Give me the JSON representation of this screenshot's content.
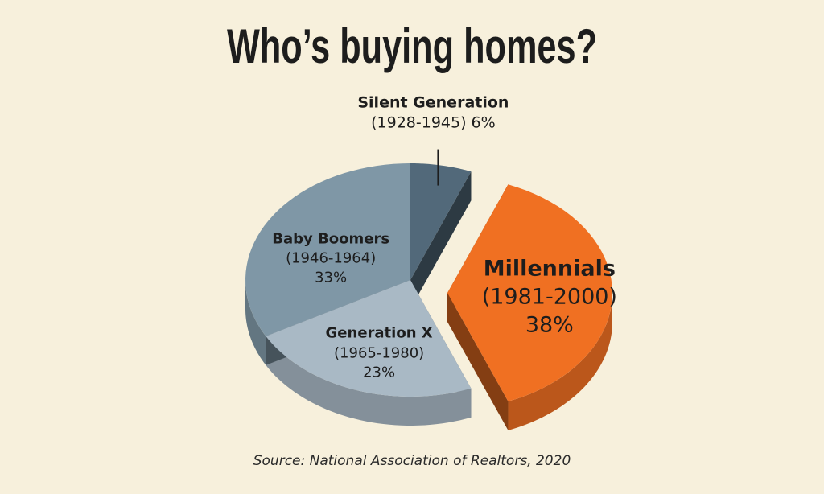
{
  "chart_data": {
    "type": "pie",
    "title": "Who’s buying homes?",
    "source": "Source: National Association of Realtors, 2020",
    "categories": [
      "Silent Generation",
      "Millennials",
      "Generation X",
      "Baby Boomers"
    ],
    "years": [
      "(1928-1945)",
      "(1981-2000)",
      "(1965-1980)",
      "(1946-1964)"
    ],
    "values": [
      6,
      38,
      23,
      33
    ],
    "value_labels": [
      "6%",
      "38%",
      "23%",
      "33%"
    ],
    "colors": [
      "#52697a",
      "#f07022",
      "#a9b9c5",
      "#7f97a6"
    ]
  }
}
